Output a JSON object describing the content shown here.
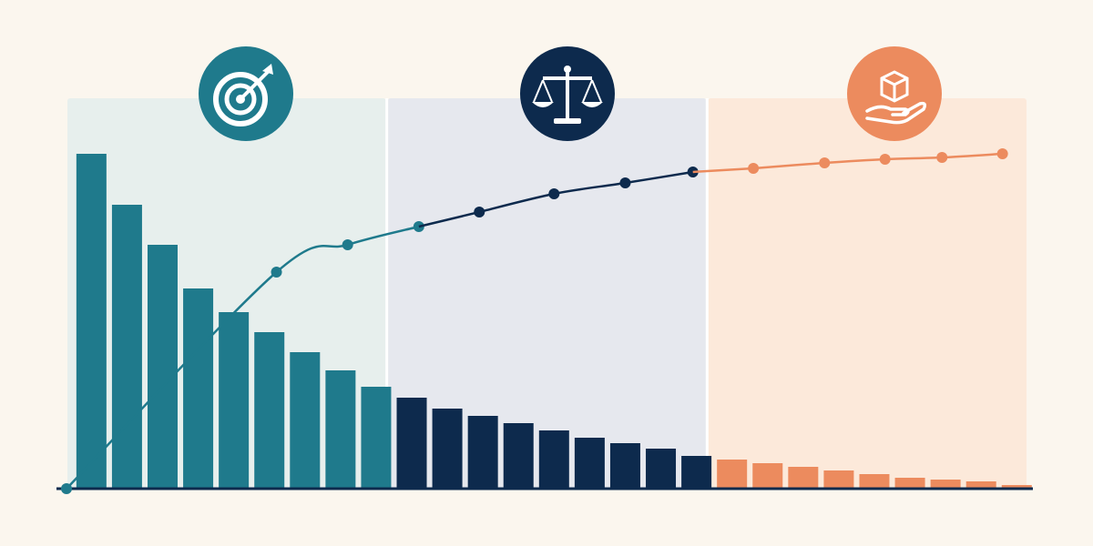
{
  "chart_data": {
    "type": "pareto",
    "xlim": [
      0,
      27
    ],
    "ylim": [
      0,
      100
    ],
    "bars": [
      {
        "color": "#1f7a8c",
        "zone": "#e7efed",
        "values": [
          92,
          78,
          67,
          55,
          48.5,
          43,
          37.5,
          32.5,
          28
        ]
      },
      {
        "color": "#0d2a4d",
        "zone": "#e6e8ee",
        "values": [
          25,
          22,
          20,
          18,
          16,
          14,
          12.5,
          11,
          9
        ]
      },
      {
        "color": "#ec8b5e",
        "zone": "#fce9da",
        "values": [
          8,
          7,
          6,
          5,
          4,
          3,
          2.5,
          2,
          1
        ]
      }
    ],
    "line": [
      {
        "color": "#1f7a8c",
        "x": [
          0,
          5.9,
          7.9,
          9.9
        ],
        "values": [
          0,
          59.5,
          67,
          72
        ]
      },
      {
        "color": "#0d2a4d",
        "x": [
          11.6,
          13.7,
          15.7,
          17.6
        ],
        "values": [
          76,
          81,
          84,
          87
        ]
      },
      {
        "color": "#ec8b5e",
        "x": [
          19.3,
          21.3,
          23,
          24.6,
          26.3
        ],
        "values": [
          88,
          89.5,
          90.5,
          91,
          92
        ]
      }
    ]
  }
}
